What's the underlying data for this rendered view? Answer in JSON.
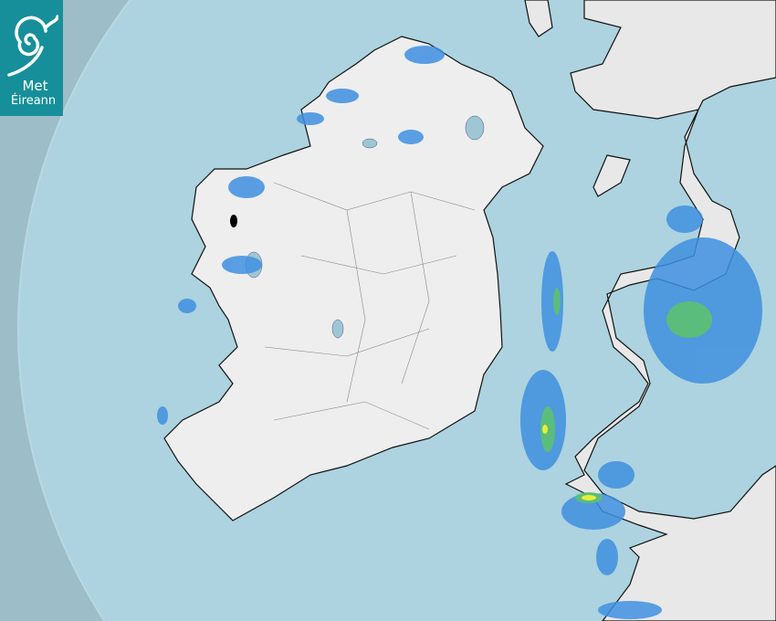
{
  "logo": {
    "line1": "Met",
    "line2": "Éireann",
    "background": "#168f9a"
  },
  "map": {
    "type": "rainfall radar",
    "colors": {
      "sea_outside_range": "#9dbdc8",
      "sea_in_range": "#acd3df",
      "land": "#ececec",
      "light_rain": "#3f8fe0",
      "moderate_rain": "#5cc36a",
      "heavy_rain": "#e6ee3a",
      "very_heavy_rain": "#000000"
    }
  }
}
